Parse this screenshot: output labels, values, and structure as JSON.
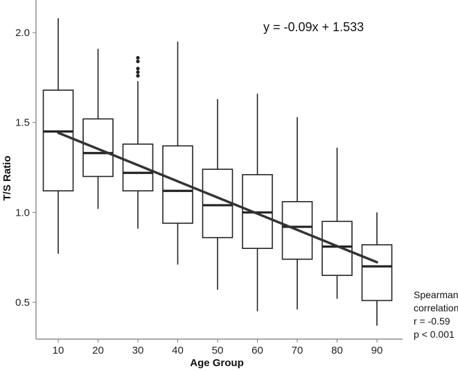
{
  "chart_data": {
    "type": "box",
    "xlabel": "Age Group",
    "ylabel": "T/S Ratio",
    "ylim": [
      0.3,
      2.15
    ],
    "yticks": [
      "0.5",
      "1.0",
      "1.5",
      "2.0"
    ],
    "categories": [
      "10",
      "20",
      "30",
      "40",
      "50",
      "60",
      "70",
      "80",
      "90"
    ],
    "boxes": [
      {
        "category": "10",
        "whisker_low": 0.77,
        "q1": 1.12,
        "median": 1.45,
        "q3": 1.68,
        "whisker_high": 2.08,
        "outliers": []
      },
      {
        "category": "20",
        "whisker_low": 1.02,
        "q1": 1.2,
        "median": 1.33,
        "q3": 1.52,
        "whisker_high": 1.91,
        "outliers": []
      },
      {
        "category": "30",
        "whisker_low": 0.91,
        "q1": 1.12,
        "median": 1.22,
        "q3": 1.38,
        "whisker_high": 1.73,
        "outliers": [
          1.76,
          1.78,
          1.8,
          1.84,
          1.86
        ]
      },
      {
        "category": "40",
        "whisker_low": 0.71,
        "q1": 0.94,
        "median": 1.12,
        "q3": 1.37,
        "whisker_high": 1.95,
        "outliers": []
      },
      {
        "category": "50",
        "whisker_low": 0.57,
        "q1": 0.86,
        "median": 1.04,
        "q3": 1.24,
        "whisker_high": 1.63,
        "outliers": []
      },
      {
        "category": "60",
        "whisker_low": 0.45,
        "q1": 0.8,
        "median": 1.0,
        "q3": 1.21,
        "whisker_high": 1.66,
        "outliers": []
      },
      {
        "category": "70",
        "whisker_low": 0.46,
        "q1": 0.74,
        "median": 0.92,
        "q3": 1.06,
        "whisker_high": 1.53,
        "outliers": []
      },
      {
        "category": "80",
        "whisker_low": 0.52,
        "q1": 0.65,
        "median": 0.81,
        "q3": 0.95,
        "whisker_high": 1.36,
        "outliers": []
      },
      {
        "category": "90",
        "whisker_low": 0.37,
        "q1": 0.51,
        "median": 0.7,
        "q3": 0.82,
        "whisker_high": 1.0,
        "outliers": []
      }
    ],
    "regression": {
      "x_start": "10",
      "y_start": 1.443,
      "x_end": "90",
      "y_end": 0.723
    },
    "annotations": {
      "equation": "y = -0.09x + 1.533",
      "stats": [
        "Spearman",
        "correlation",
        "r = -0.59",
        "p < 0.001"
      ]
    },
    "colors": {
      "box_stroke": "#222222",
      "median": "#222222",
      "regression": "#333333",
      "axis": "#777777"
    }
  }
}
